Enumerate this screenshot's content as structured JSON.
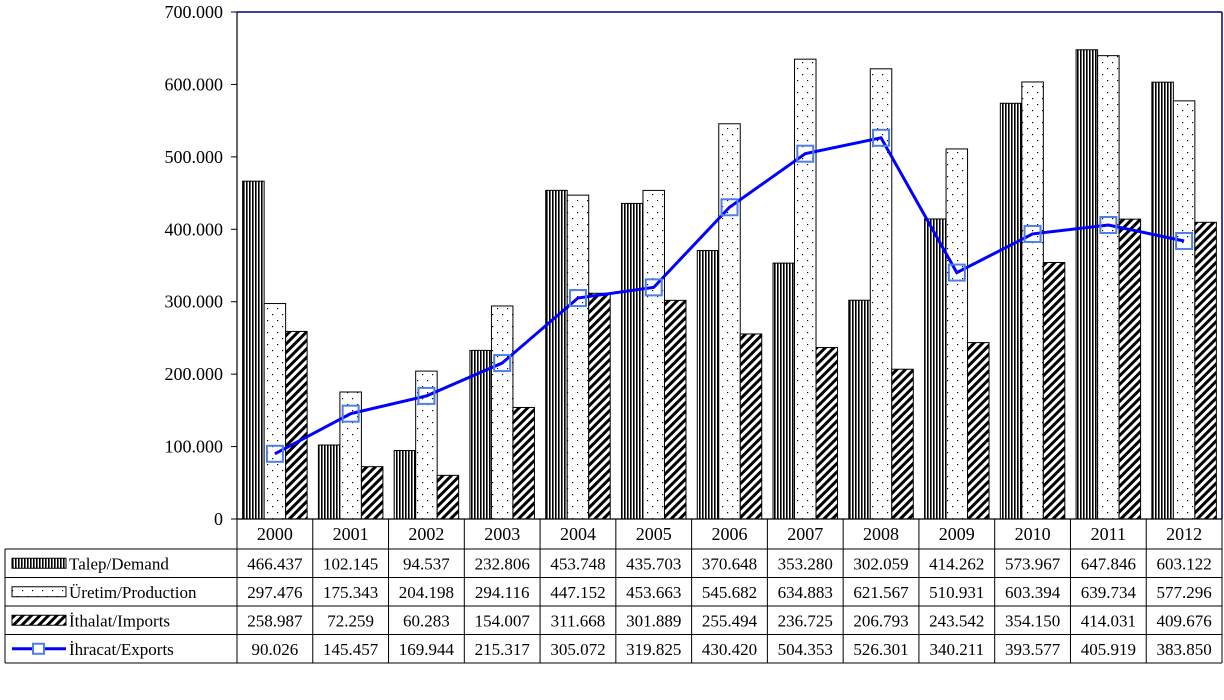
{
  "chart_data": {
    "type": "bar",
    "categories": [
      "2000",
      "2001",
      "2002",
      "2003",
      "2004",
      "2005",
      "2006",
      "2007",
      "2008",
      "2009",
      "2010",
      "2011",
      "2012"
    ],
    "y_ticks": [
      "0",
      "100.000",
      "200.000",
      "300.000",
      "400.000",
      "500.000",
      "600.000",
      "700.000"
    ],
    "ylim": [
      0,
      700000
    ],
    "grid": false,
    "legend_placement": "bottom (data table)",
    "series": [
      {
        "name": "Talep/Demand",
        "type": "bar",
        "pattern": "vertical-stripes",
        "values": [
          466437,
          102145,
          94537,
          232806,
          453748,
          435703,
          370648,
          353280,
          302059,
          414262,
          573967,
          647846,
          603122
        ],
        "labels": [
          "466.437",
          "102.145",
          "94.537",
          "232.806",
          "453.748",
          "435.703",
          "370.648",
          "353.280",
          "302.059",
          "414.262",
          "573.967",
          "647.846",
          "603.122"
        ]
      },
      {
        "name": "Üretim/Production",
        "type": "bar",
        "pattern": "dots",
        "values": [
          297476,
          175343,
          204198,
          294116,
          447152,
          453663,
          545682,
          634883,
          621567,
          510931,
          603394,
          639734,
          577296
        ],
        "labels": [
          "297.476",
          "175.343",
          "204.198",
          "294.116",
          "447.152",
          "453.663",
          "545.682",
          "634.883",
          "621.567",
          "510.931",
          "603.394",
          "639.734",
          "577.296"
        ]
      },
      {
        "name": "İthalat/Imports",
        "type": "bar",
        "pattern": "diagonal-hatch",
        "values": [
          258987,
          72259,
          60283,
          154007,
          311668,
          301889,
          255494,
          236725,
          206793,
          243542,
          354150,
          414031,
          409676
        ],
        "labels": [
          "258.987",
          "72.259",
          "60.283",
          "154.007",
          "311.668",
          "301.889",
          "255.494",
          "236.725",
          "206.793",
          "243.542",
          "354.150",
          "414.031",
          "409.676"
        ]
      },
      {
        "name": "İhracat/Exports",
        "type": "line",
        "color": "#0000ff",
        "marker_color": "#4f7fe8",
        "values": [
          90026,
          145457,
          169944,
          215317,
          305072,
          319825,
          430420,
          504353,
          526301,
          340211,
          393577,
          405919,
          383850
        ],
        "labels": [
          "90.026",
          "145.457",
          "169.944",
          "215.317",
          "305.072",
          "319.825",
          "430.420",
          "504.353",
          "526.301",
          "340.211",
          "393.577",
          "405.919",
          "383.850"
        ]
      }
    ]
  },
  "colors": {
    "axis": "#000000",
    "plot_border": "#000080",
    "line": "#0000ff",
    "marker": "#4f7fe8"
  }
}
